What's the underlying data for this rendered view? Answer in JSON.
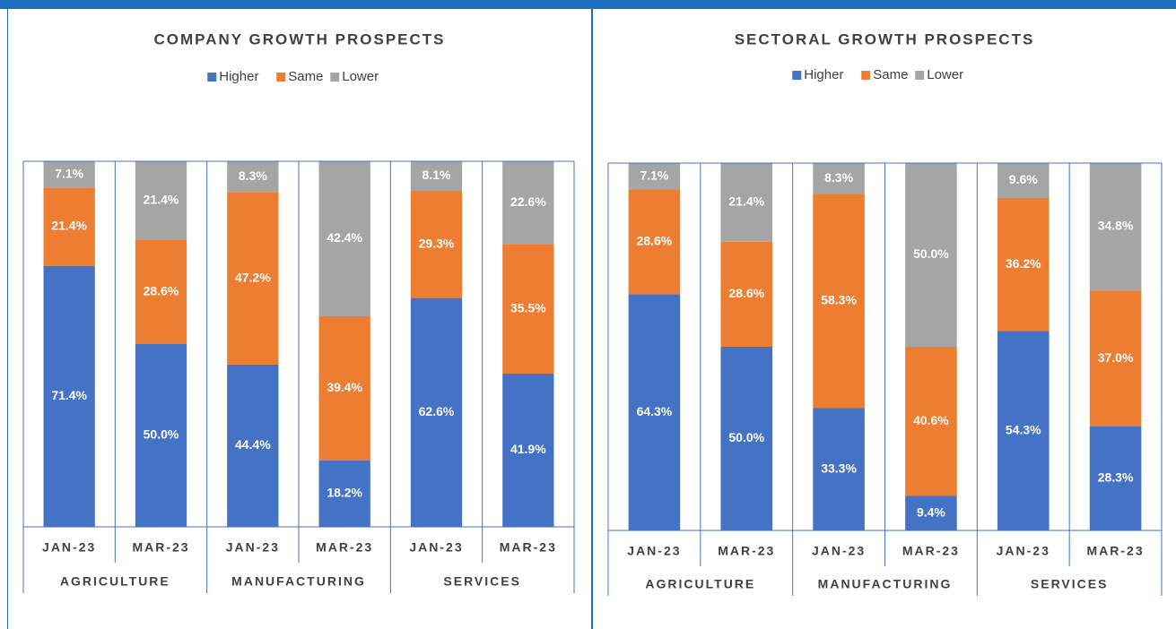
{
  "chart_data": [
    {
      "type": "bar",
      "stacked": true,
      "title": "COMPANY GROWTH PROSPECTS",
      "categories": [
        "JAN-23",
        "MAR-23",
        "JAN-23",
        "MAR-23",
        "JAN-23",
        "MAR-23"
      ],
      "groups": [
        "AGRICULTURE",
        "MANUFACTURING",
        "SERVICES"
      ],
      "ylim": [
        0,
        100
      ],
      "series": [
        {
          "name": "Higher",
          "color": "#4472c4",
          "values": [
            71.4,
            50.0,
            44.4,
            18.2,
            62.6,
            41.9
          ],
          "value_labels": [
            "71.4%",
            "50.0%",
            "44.4%",
            "18.2%",
            "62.6%",
            "41.9%"
          ]
        },
        {
          "name": "Same",
          "color": "#ed7d31",
          "values": [
            21.4,
            28.6,
            47.2,
            39.4,
            29.3,
            35.5
          ],
          "value_labels": [
            "21.4%",
            "28.6%",
            "47.2%",
            "39.4%",
            "29.3%",
            "35.5%"
          ]
        },
        {
          "name": "Lower",
          "color": "#a5a5a5",
          "values": [
            7.1,
            21.4,
            8.3,
            42.4,
            8.1,
            22.6
          ],
          "value_labels": [
            "7.1%",
            "21.4%",
            "8.3%",
            "42.4%",
            "8.1%",
            "22.6%"
          ]
        }
      ]
    },
    {
      "type": "bar",
      "stacked": true,
      "title": "SECTORAL GROWTH PROSPECTS",
      "categories": [
        "JAN-23",
        "MAR-23",
        "JAN-23",
        "MAR-23",
        "JAN-23",
        "MAR-23"
      ],
      "groups": [
        "AGRICULTURE",
        "MANUFACTURING",
        "SERVICES"
      ],
      "ylim": [
        0,
        100
      ],
      "series": [
        {
          "name": "Higher",
          "color": "#4472c4",
          "values": [
            64.3,
            50.0,
            33.3,
            9.4,
            54.3,
            28.3
          ],
          "value_labels": [
            "64.3%",
            "50.0%",
            "33.3%",
            "9.4%",
            "54.3%",
            "28.3%"
          ]
        },
        {
          "name": "Same",
          "color": "#ed7d31",
          "values": [
            28.6,
            28.6,
            58.3,
            40.6,
            36.2,
            37.0
          ],
          "value_labels": [
            "28.6%",
            "28.6%",
            "58.3%",
            "40.6%",
            "36.2%",
            "37.0%"
          ]
        },
        {
          "name": "Lower",
          "color": "#a5a5a5",
          "values": [
            7.1,
            21.4,
            8.3,
            50.0,
            9.6,
            34.8
          ],
          "value_labels": [
            "7.1%",
            "21.4%",
            "8.3%",
            "50.0%",
            "9.6%",
            "34.8%"
          ]
        }
      ]
    }
  ]
}
